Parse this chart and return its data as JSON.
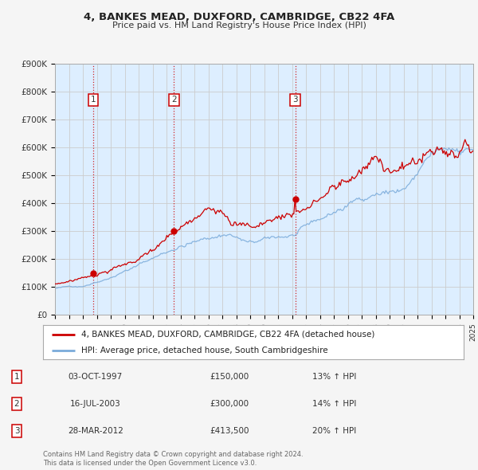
{
  "title": "4, BANKES MEAD, DUXFORD, CAMBRIDGE, CB22 4FA",
  "subtitle": "Price paid vs. HM Land Registry's House Price Index (HPI)",
  "x_start_year": 1995,
  "x_end_year": 2025,
  "y_min": 0,
  "y_max": 900000,
  "y_ticks": [
    0,
    100000,
    200000,
    300000,
    400000,
    500000,
    600000,
    700000,
    800000,
    900000
  ],
  "y_tick_labels": [
    "£0",
    "£100K",
    "£200K",
    "£300K",
    "£400K",
    "£500K",
    "£600K",
    "£700K",
    "£800K",
    "£900K"
  ],
  "purchases": [
    {
      "date_num": 1997.75,
      "price": 150000,
      "label": "1"
    },
    {
      "date_num": 2003.54,
      "price": 300000,
      "label": "2"
    },
    {
      "date_num": 2012.23,
      "price": 413500,
      "label": "3"
    }
  ],
  "vline_color": "#cc0000",
  "vline_style": ":",
  "property_line_color": "#cc0000",
  "hpi_line_color": "#7aabda",
  "background_color": "#ddeeff",
  "grid_color": "#cccccc",
  "fig_bg_color": "#f5f5f5",
  "legend_entries": [
    "4, BANKES MEAD, DUXFORD, CAMBRIDGE, CB22 4FA (detached house)",
    "HPI: Average price, detached house, South Cambridgeshire"
  ],
  "table_rows": [
    {
      "num": "1",
      "date": "03-OCT-1997",
      "price": "£150,000",
      "hpi": "13% ↑ HPI"
    },
    {
      "num": "2",
      "date": "16-JUL-2003",
      "price": "£300,000",
      "hpi": "14% ↑ HPI"
    },
    {
      "num": "3",
      "date": "28-MAR-2012",
      "price": "£413,500",
      "hpi": "20% ↑ HPI"
    }
  ],
  "footnote1": "Contains HM Land Registry data © Crown copyright and database right 2024.",
  "footnote2": "This data is licensed under the Open Government Licence v3.0."
}
